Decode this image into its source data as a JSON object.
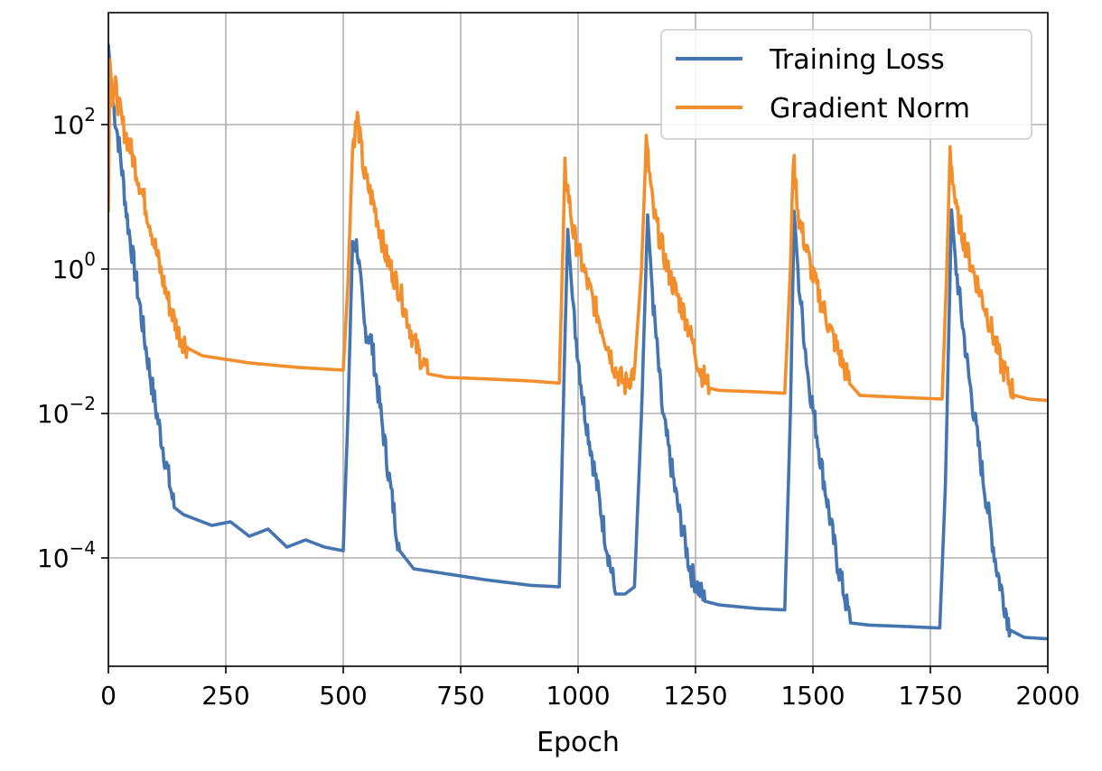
{
  "chart_data": {
    "type": "line",
    "title": "",
    "xlabel": "Epoch",
    "ylabel": "",
    "xlim": [
      0,
      2000
    ],
    "ylim_log10": [
      -5.5,
      3.55
    ],
    "yscale": "log",
    "grid": true,
    "legend_position": "top-right",
    "x_ticks": [
      "0",
      "250",
      "500",
      "750",
      "1000",
      "1250",
      "1500",
      "1750",
      "2000"
    ],
    "y_ticks": [
      {
        "base": "10",
        "exp": "2",
        "log10": 2
      },
      {
        "base": "10",
        "exp": "0",
        "log10": 0
      },
      {
        "base": "10",
        "exp": "−2",
        "log10": -2
      },
      {
        "base": "10",
        "exp": "−4",
        "log10": -4
      }
    ],
    "series": [
      {
        "name": "Training Loss",
        "color": "#4575b0",
        "points": [
          [
            0,
            3.1
          ],
          [
            10,
            2.3
          ],
          [
            25,
            1.6
          ],
          [
            40,
            0.7
          ],
          [
            60,
            -0.2
          ],
          [
            80,
            -1.1
          ],
          [
            100,
            -1.9
          ],
          [
            120,
            -2.6
          ],
          [
            140,
            -3.3
          ],
          [
            160,
            -3.4
          ],
          [
            180,
            -3.45
          ],
          [
            220,
            -3.55
          ],
          [
            260,
            -3.5
          ],
          [
            300,
            -3.7
          ],
          [
            340,
            -3.6
          ],
          [
            380,
            -3.85
          ],
          [
            420,
            -3.75
          ],
          [
            460,
            -3.85
          ],
          [
            500,
            -3.9
          ],
          [
            510,
            -2.0
          ],
          [
            520,
            0.4
          ],
          [
            530,
            0.3
          ],
          [
            545,
            -0.8
          ],
          [
            560,
            -1.0
          ],
          [
            580,
            -2.0
          ],
          [
            600,
            -3.0
          ],
          [
            620,
            -3.9
          ],
          [
            650,
            -4.15
          ],
          [
            700,
            -4.2
          ],
          [
            800,
            -4.3
          ],
          [
            900,
            -4.38
          ],
          [
            960,
            -4.4
          ],
          [
            970,
            -1.5
          ],
          [
            978,
            0.55
          ],
          [
            990,
            -0.6
          ],
          [
            1010,
            -1.8
          ],
          [
            1040,
            -3.0
          ],
          [
            1060,
            -3.8
          ],
          [
            1080,
            -4.5
          ],
          [
            1100,
            -4.5
          ],
          [
            1120,
            -4.4
          ],
          [
            1135,
            -2.0
          ],
          [
            1148,
            0.75
          ],
          [
            1160,
            -0.5
          ],
          [
            1180,
            -2.0
          ],
          [
            1210,
            -3.2
          ],
          [
            1240,
            -4.2
          ],
          [
            1270,
            -4.6
          ],
          [
            1300,
            -4.65
          ],
          [
            1380,
            -4.7
          ],
          [
            1440,
            -4.72
          ],
          [
            1452,
            -2.0
          ],
          [
            1460,
            0.8
          ],
          [
            1470,
            -0.2
          ],
          [
            1490,
            -1.5
          ],
          [
            1520,
            -2.8
          ],
          [
            1550,
            -4.0
          ],
          [
            1580,
            -4.9
          ],
          [
            1620,
            -4.93
          ],
          [
            1700,
            -4.95
          ],
          [
            1770,
            -4.97
          ],
          [
            1782,
            -3.0
          ],
          [
            1795,
            0.82
          ],
          [
            1805,
            0.0
          ],
          [
            1830,
            -1.4
          ],
          [
            1860,
            -2.8
          ],
          [
            1890,
            -4.1
          ],
          [
            1920,
            -5.0
          ],
          [
            1950,
            -5.1
          ],
          [
            2000,
            -5.12
          ]
        ]
      },
      {
        "name": "Gradient Norm",
        "color": "#f28e2b",
        "points": [
          [
            0,
            0.8
          ],
          [
            3,
            2.9
          ],
          [
            8,
            2.4
          ],
          [
            15,
            2.5
          ],
          [
            30,
            2.0
          ],
          [
            50,
            1.6
          ],
          [
            70,
            1.1
          ],
          [
            90,
            0.6
          ],
          [
            110,
            0.0
          ],
          [
            130,
            -0.5
          ],
          [
            150,
            -0.9
          ],
          [
            170,
            -1.1
          ],
          [
            200,
            -1.2
          ],
          [
            250,
            -1.25
          ],
          [
            300,
            -1.3
          ],
          [
            350,
            -1.33
          ],
          [
            400,
            -1.36
          ],
          [
            450,
            -1.38
          ],
          [
            500,
            -1.4
          ],
          [
            510,
            -0.2
          ],
          [
            520,
            1.7
          ],
          [
            530,
            2.1
          ],
          [
            545,
            1.3
          ],
          [
            565,
            0.9
          ],
          [
            590,
            0.2
          ],
          [
            620,
            -0.3
          ],
          [
            650,
            -1.0
          ],
          [
            680,
            -1.45
          ],
          [
            720,
            -1.5
          ],
          [
            800,
            -1.52
          ],
          [
            900,
            -1.55
          ],
          [
            960,
            -1.58
          ],
          [
            972,
            1.4
          ],
          [
            990,
            0.5
          ],
          [
            1020,
            -0.2
          ],
          [
            1050,
            -0.8
          ],
          [
            1080,
            -1.4
          ],
          [
            1100,
            -1.6
          ],
          [
            1120,
            -1.4
          ],
          [
            1135,
            0.0
          ],
          [
            1145,
            1.75
          ],
          [
            1160,
            0.8
          ],
          [
            1190,
            0.0
          ],
          [
            1230,
            -0.7
          ],
          [
            1260,
            -1.4
          ],
          [
            1280,
            -1.65
          ],
          [
            1300,
            -1.68
          ],
          [
            1380,
            -1.7
          ],
          [
            1440,
            -1.72
          ],
          [
            1452,
            0.0
          ],
          [
            1458,
            1.55
          ],
          [
            1470,
            0.7
          ],
          [
            1500,
            -0.1
          ],
          [
            1540,
            -0.9
          ],
          [
            1580,
            -1.6
          ],
          [
            1600,
            -1.75
          ],
          [
            1700,
            -1.78
          ],
          [
            1775,
            -1.8
          ],
          [
            1785,
            0.0
          ],
          [
            1792,
            1.65
          ],
          [
            1805,
            0.8
          ],
          [
            1830,
            0.2
          ],
          [
            1870,
            -0.6
          ],
          [
            1900,
            -1.3
          ],
          [
            1930,
            -1.75
          ],
          [
            1960,
            -1.8
          ],
          [
            2000,
            -1.82
          ]
        ]
      }
    ]
  }
}
